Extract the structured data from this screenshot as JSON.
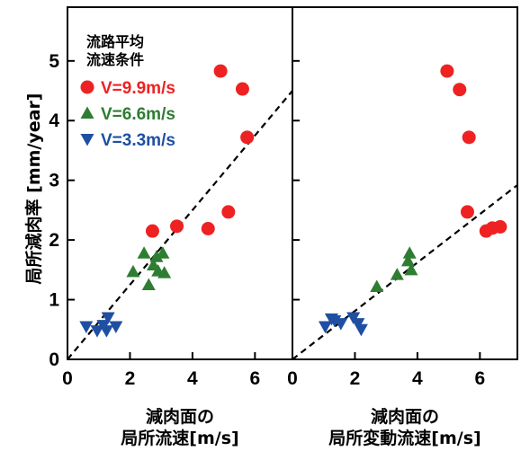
{
  "ylabel": "局所減肉率 [mm/year]",
  "legend": {
    "title_line1": "流路平均",
    "title_line2": "流速条件",
    "entries": [
      {
        "label": "V=9.9m/s",
        "color": "#ee2222",
        "marker": "circle"
      },
      {
        "label": "V=6.6m/s",
        "color": "#2e7d32",
        "marker": "triangle-up"
      },
      {
        "label": "V=3.3m/s",
        "color": "#1e4fa3",
        "marker": "triangle-down"
      }
    ]
  },
  "chart_data": [
    {
      "type": "scatter",
      "xlabel_line1": "減肉面の",
      "xlabel_line2": "局所流速[m/s]",
      "ylabel": "局所減肉率 [mm/year]",
      "xlim": [
        0,
        7.2
      ],
      "ylim": [
        0,
        5.9
      ],
      "xticks": [
        0,
        2,
        4,
        6
      ],
      "yticks": [
        0,
        1,
        2,
        3,
        4,
        5
      ],
      "series": [
        {
          "name": "V=9.9m/s",
          "marker": "circle",
          "color": "#ee2222",
          "points": [
            [
              4.9,
              4.83
            ],
            [
              5.6,
              4.53
            ],
            [
              5.75,
              3.72
            ],
            [
              3.5,
              2.23
            ],
            [
              2.72,
              2.15
            ],
            [
              4.5,
              2.19
            ],
            [
              5.15,
              2.47
            ]
          ]
        },
        {
          "name": "V=6.6m/s",
          "marker": "triangle-up",
          "color": "#2e7d32",
          "points": [
            [
              2.45,
              1.78
            ],
            [
              2.85,
              1.72
            ],
            [
              3.05,
              1.78
            ],
            [
              2.1,
              1.47
            ],
            [
              2.75,
              1.58
            ],
            [
              2.9,
              1.48
            ],
            [
              3.1,
              1.45
            ],
            [
              2.6,
              1.25
            ]
          ]
        },
        {
          "name": "V=3.3m/s",
          "marker": "triangle-down",
          "color": "#1e4fa3",
          "points": [
            [
              0.6,
              0.55
            ],
            [
              0.95,
              0.48
            ],
            [
              1.15,
              0.57
            ],
            [
              1.3,
              0.7
            ],
            [
              1.25,
              0.48
            ],
            [
              1.55,
              0.55
            ]
          ]
        }
      ],
      "trendline": {
        "style": "dashed",
        "from": [
          0,
          0
        ],
        "to": [
          7.2,
          4.5
        ]
      }
    },
    {
      "type": "scatter",
      "xlabel_line1": "減肉面の",
      "xlabel_line2": "局所変動流速[m/s]",
      "xlim": [
        0,
        7.2
      ],
      "ylim": [
        0,
        5.9
      ],
      "xticks": [
        0,
        2,
        4,
        6
      ],
      "yticks": [
        0,
        1,
        2,
        3,
        4,
        5
      ],
      "series": [
        {
          "name": "V=9.9m/s",
          "marker": "circle",
          "color": "#ee2222",
          "points": [
            [
              4.95,
              4.83
            ],
            [
              5.35,
              4.52
            ],
            [
              5.65,
              3.72
            ],
            [
              5.6,
              2.47
            ],
            [
              6.2,
              2.15
            ],
            [
              6.4,
              2.2
            ],
            [
              6.65,
              2.22
            ]
          ]
        },
        {
          "name": "V=6.6m/s",
          "marker": "triangle-up",
          "color": "#2e7d32",
          "points": [
            [
              3.75,
              1.78
            ],
            [
              3.7,
              1.65
            ],
            [
              3.8,
              1.5
            ],
            [
              3.35,
              1.42
            ],
            [
              2.7,
              1.22
            ]
          ]
        },
        {
          "name": "V=3.3m/s",
          "marker": "triangle-down",
          "color": "#1e4fa3",
          "points": [
            [
              1.05,
              0.55
            ],
            [
              1.25,
              0.68
            ],
            [
              1.55,
              0.6
            ],
            [
              1.95,
              0.7
            ],
            [
              2.1,
              0.6
            ],
            [
              2.2,
              0.5
            ],
            [
              1.35,
              0.65
            ]
          ]
        }
      ],
      "trendline": {
        "style": "dashed",
        "from": [
          0,
          0
        ],
        "to": [
          7.2,
          2.92
        ]
      }
    }
  ]
}
